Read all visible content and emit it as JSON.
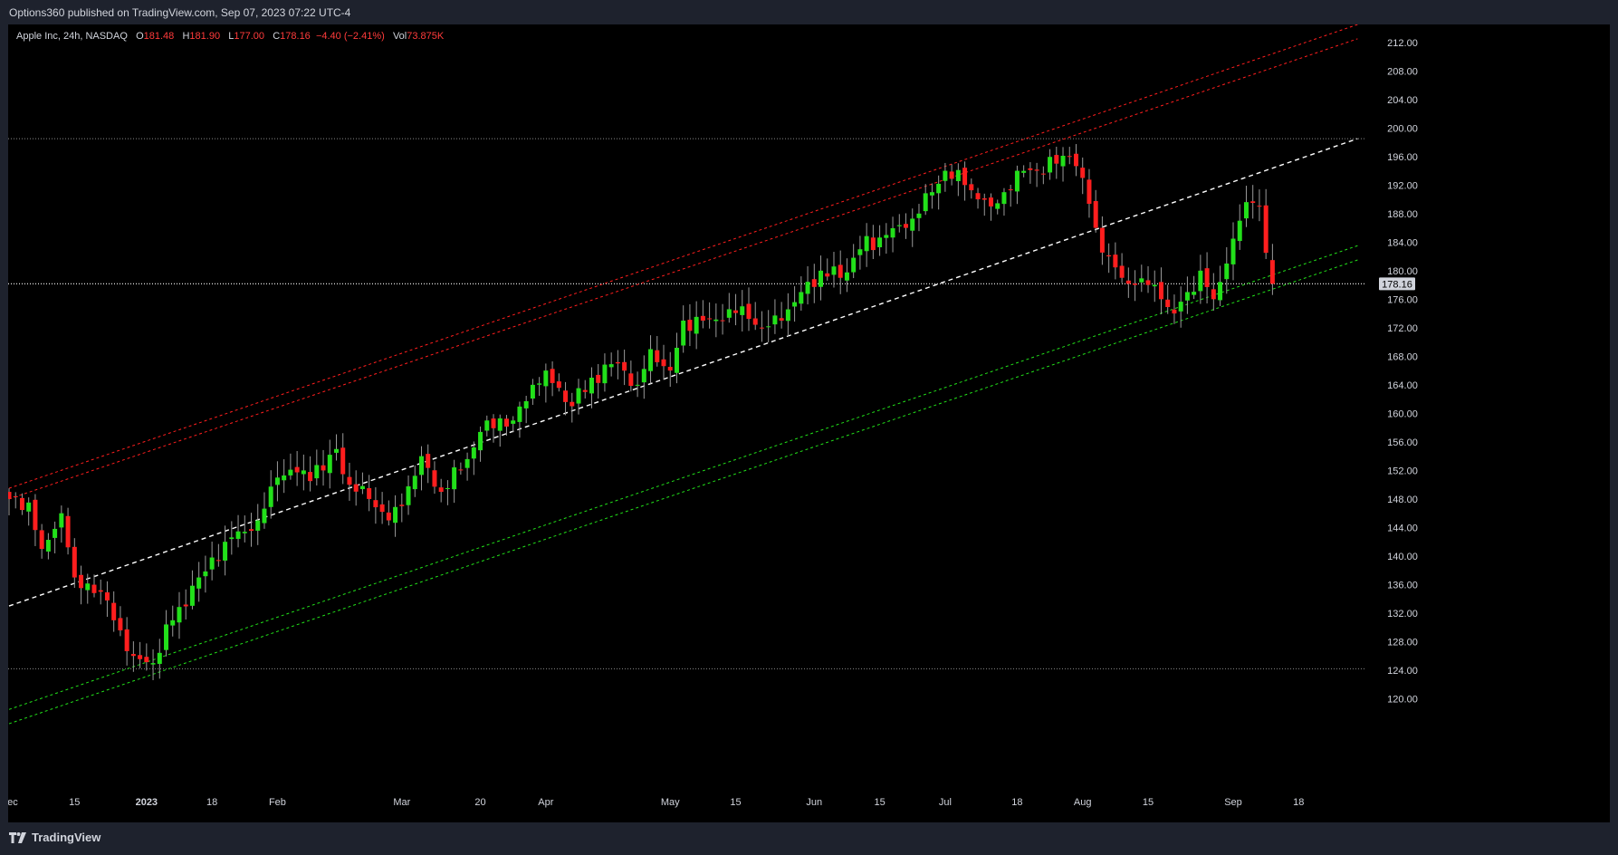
{
  "header": {
    "published": "Options360 published on TradingView.com, Sep 07, 2023 07:22 UTC-4"
  },
  "legend": {
    "symbol": "Apple Inc, 24h, NASDAQ",
    "o_label": "O",
    "o_value": "181.48",
    "h_label": "H",
    "h_value": "181.90",
    "l_label": "L",
    "l_value": "177.00",
    "c_label": "C",
    "c_value": "178.16",
    "change": "−4.40 (−2.41%)",
    "vol_label": "Vol",
    "vol_value": "73.875K"
  },
  "footer": {
    "brand": "TradingView"
  },
  "colors": {
    "up": "#22e01a",
    "down": "#ff1e1e",
    "background": "#000000",
    "frame": "#1e222d"
  },
  "chart_data": {
    "type": "candlestick",
    "y_axis_ticks": [
      "120.00",
      "124.00",
      "128.00",
      "132.00",
      "136.00",
      "140.00",
      "144.00",
      "148.00",
      "152.00",
      "156.00",
      "160.00",
      "164.00",
      "168.00",
      "172.00",
      "176.00",
      "180.00",
      "184.00",
      "188.00",
      "192.00",
      "196.00",
      "200.00",
      "204.00",
      "208.00",
      "212.00"
    ],
    "ylim": [
      116,
      214
    ],
    "x_axis_labels": [
      {
        "t": 0,
        "label": "Dec"
      },
      {
        "t": 10,
        "label": "15"
      },
      {
        "t": 21,
        "label": "2023"
      },
      {
        "t": 31,
        "label": "18"
      },
      {
        "t": 41,
        "label": "Feb"
      },
      {
        "t": 60,
        "label": "Mar"
      },
      {
        "t": 72,
        "label": "20"
      },
      {
        "t": 82,
        "label": "Apr"
      },
      {
        "t": 101,
        "label": "May"
      },
      {
        "t": 111,
        "label": "15"
      },
      {
        "t": 123,
        "label": "Jun"
      },
      {
        "t": 133,
        "label": "15"
      },
      {
        "t": 143,
        "label": "Jul"
      },
      {
        "t": 154,
        "label": "18"
      },
      {
        "t": 164,
        "label": "Aug"
      },
      {
        "t": 174,
        "label": "15"
      },
      {
        "t": 187,
        "label": "Sep"
      },
      {
        "t": 197,
        "label": "18"
      }
    ],
    "last_price": "178.16",
    "horizontal_levels": [
      198.5,
      124.2
    ],
    "trend_lines": [
      {
        "style": "white-dashed",
        "points": [
          [
            0,
            133
          ],
          [
            206,
            198.5
          ]
        ]
      },
      {
        "style": "red-dashed",
        "points": [
          [
            0,
            149.5
          ],
          [
            206,
            214.5
          ]
        ]
      },
      {
        "style": "red-dashed",
        "points": [
          [
            0,
            148
          ],
          [
            206,
            212.5
          ]
        ]
      },
      {
        "style": "green-dashed",
        "points": [
          [
            0,
            118.5
          ],
          [
            206,
            183.5
          ]
        ]
      },
      {
        "style": "green-dashed",
        "points": [
          [
            0,
            116.5
          ],
          [
            206,
            181.5
          ]
        ]
      }
    ],
    "anchors": [
      {
        "t": 0,
        "c": 148
      },
      {
        "t": 3,
        "c": 147.5
      },
      {
        "t": 5,
        "c": 141
      },
      {
        "t": 8,
        "c": 146
      },
      {
        "t": 10,
        "c": 137
      },
      {
        "t": 14,
        "c": 135
      },
      {
        "t": 16,
        "c": 131
      },
      {
        "t": 19,
        "c": 126
      },
      {
        "t": 22,
        "c": 125
      },
      {
        "t": 25,
        "c": 131
      },
      {
        "t": 29,
        "c": 137
      },
      {
        "t": 33,
        "c": 142
      },
      {
        "t": 38,
        "c": 145
      },
      {
        "t": 41,
        "c": 151
      },
      {
        "t": 45,
        "c": 152
      },
      {
        "t": 48,
        "c": 152
      },
      {
        "t": 50,
        "c": 155
      },
      {
        "t": 52,
        "c": 150
      },
      {
        "t": 55,
        "c": 148
      },
      {
        "t": 58,
        "c": 145
      },
      {
        "t": 60,
        "c": 147
      },
      {
        "t": 63,
        "c": 154
      },
      {
        "t": 66,
        "c": 149
      },
      {
        "t": 69,
        "c": 152
      },
      {
        "t": 73,
        "c": 159
      },
      {
        "t": 77,
        "c": 159
      },
      {
        "t": 80,
        "c": 164
      },
      {
        "t": 82,
        "c": 166
      },
      {
        "t": 86,
        "c": 161
      },
      {
        "t": 89,
        "c": 165
      },
      {
        "t": 93,
        "c": 167
      },
      {
        "t": 96,
        "c": 164
      },
      {
        "t": 98,
        "c": 169
      },
      {
        "t": 101,
        "c": 166
      },
      {
        "t": 103,
        "c": 173
      },
      {
        "t": 106,
        "c": 173
      },
      {
        "t": 109,
        "c": 173
      },
      {
        "t": 112,
        "c": 175
      },
      {
        "t": 115,
        "c": 172
      },
      {
        "t": 118,
        "c": 173
      },
      {
        "t": 121,
        "c": 177
      },
      {
        "t": 124,
        "c": 180
      },
      {
        "t": 127,
        "c": 179
      },
      {
        "t": 130,
        "c": 183
      },
      {
        "t": 134,
        "c": 185
      },
      {
        "t": 137,
        "c": 186
      },
      {
        "t": 139,
        "c": 188
      },
      {
        "t": 141,
        "c": 191
      },
      {
        "t": 143,
        "c": 194
      },
      {
        "t": 146,
        "c": 192
      },
      {
        "t": 148,
        "c": 190
      },
      {
        "t": 150,
        "c": 189
      },
      {
        "t": 152,
        "c": 191
      },
      {
        "t": 154,
        "c": 194
      },
      {
        "t": 157,
        "c": 194
      },
      {
        "t": 160,
        "c": 195
      },
      {
        "t": 162,
        "c": 196
      },
      {
        "t": 164,
        "c": 193
      },
      {
        "t": 166,
        "c": 186
      },
      {
        "t": 168,
        "c": 182
      },
      {
        "t": 170,
        "c": 179
      },
      {
        "t": 172,
        "c": 178
      },
      {
        "t": 174,
        "c": 178
      },
      {
        "t": 176,
        "c": 176
      },
      {
        "t": 178,
        "c": 174
      },
      {
        "t": 180,
        "c": 177
      },
      {
        "t": 182,
        "c": 180
      },
      {
        "t": 184,
        "c": 176
      },
      {
        "t": 186,
        "c": 181
      },
      {
        "t": 188,
        "c": 187
      },
      {
        "t": 190,
        "c": 189.5
      },
      {
        "t": 191,
        "c": 189
      },
      {
        "t": 192,
        "c": 182.5
      },
      {
        "t": 193,
        "c": 178.2
      }
    ]
  }
}
